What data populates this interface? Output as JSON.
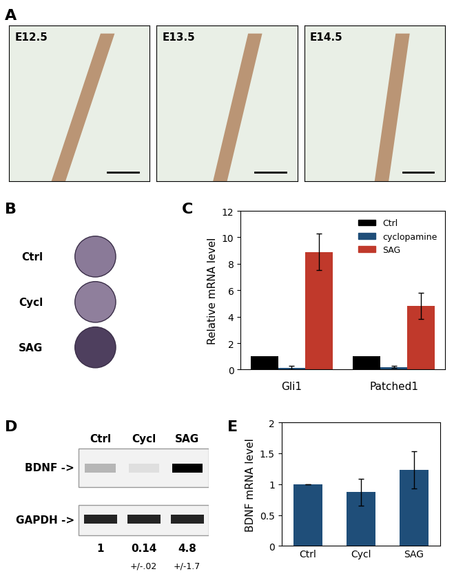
{
  "panel_labels": [
    "A",
    "B",
    "C",
    "D",
    "E"
  ],
  "panel_a": {
    "images": [
      "E12.5",
      "E13.5",
      "E14.5"
    ]
  },
  "panel_b": {
    "rows": [
      "Ctrl",
      "Cycl",
      "SAG"
    ]
  },
  "panel_d": {
    "lanes": [
      "Ctrl",
      "Cycl",
      "SAG"
    ],
    "bands": [
      "BDNF ->",
      "GAPDH ->"
    ],
    "quantification": [
      1,
      0.14,
      4.8
    ],
    "quantification_labels": [
      "1",
      "0.14",
      "4.8"
    ],
    "errors": [
      null,
      "+/-.02",
      "+/-1.7"
    ]
  },
  "chart_data": [
    {
      "type": "bar",
      "y_label": "Relative mRNA level",
      "categories": [
        "Gli1",
        "Patched1"
      ],
      "series": [
        {
          "name": "Ctrl",
          "color": "#000000",
          "values": [
            1,
            1
          ]
        },
        {
          "name": "cyclopamine",
          "color": "#1f4e79",
          "values": [
            0.15,
            0.2
          ],
          "errors": [
            0.15,
            0.1
          ]
        },
        {
          "name": "SAG",
          "color": "#c0392b",
          "values": [
            8.9,
            4.8
          ],
          "errors": [
            1.4,
            1.0
          ]
        }
      ],
      "ylim": [
        0,
        12
      ],
      "yticks": [
        0,
        2,
        4,
        6,
        8,
        10,
        12
      ],
      "legend": "upper right",
      "grid": false
    },
    {
      "type": "bar",
      "y_label": "BDNF mRNA level",
      "categories": [
        "Ctrl",
        "Cycl",
        "SAG"
      ],
      "values": [
        1,
        0.87,
        1.23
      ],
      "errors": [
        0,
        0.22,
        0.3
      ],
      "color": "#1f4e79",
      "ylim": [
        0,
        2
      ],
      "yticks": [
        0,
        0.5,
        1,
        1.5,
        2
      ],
      "grid": false
    }
  ]
}
